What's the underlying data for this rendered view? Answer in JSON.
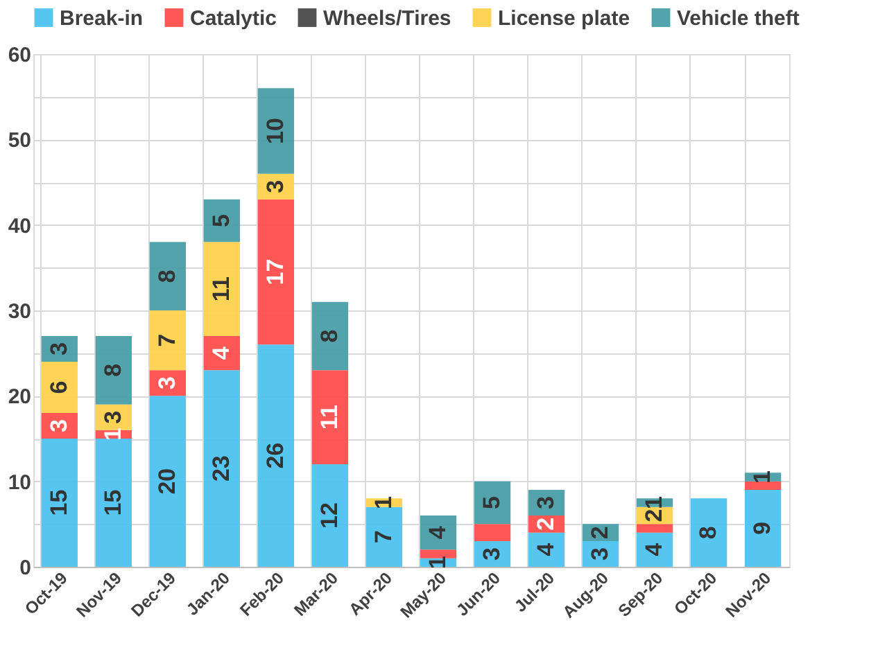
{
  "chart_data": {
    "type": "bar",
    "stacked": true,
    "categories": [
      "Oct-19",
      "Nov-19",
      "Dec-19",
      "Jan-20",
      "Feb-20",
      "Mar-20",
      "Apr-20",
      "May-20",
      "Jun-20",
      "Jul-20",
      "Aug-20",
      "Sep-20",
      "Oct-20",
      "Nov-20"
    ],
    "series": [
      {
        "name": "Break-in",
        "color": "#4dc3f0",
        "values": [
          15,
          15,
          20,
          23,
          26,
          12,
          7,
          1,
          3,
          4,
          3,
          4,
          8,
          9
        ],
        "value_labels": [
          "15",
          "15",
          "20",
          "23",
          "26",
          "12",
          "7",
          "1",
          "3",
          "4",
          "3",
          "4",
          "8",
          "9"
        ]
      },
      {
        "name": "Catalytic",
        "color": "#ff4d4d",
        "values": [
          3,
          1,
          3,
          4,
          17,
          11,
          null,
          1,
          2,
          2,
          null,
          1,
          null,
          1
        ],
        "value_labels": [
          "3",
          "1",
          "3",
          "4",
          "17",
          "11",
          null,
          null,
          null,
          "2",
          null,
          null,
          null,
          null
        ]
      },
      {
        "name": "Wheels/Tires",
        "color": "#4a4a4a",
        "values": [
          null,
          null,
          null,
          null,
          null,
          null,
          null,
          null,
          null,
          null,
          null,
          null,
          null,
          null
        ]
      },
      {
        "name": "License plate",
        "color": "#ffd24d",
        "values": [
          6,
          3,
          7,
          11,
          3,
          null,
          1,
          null,
          null,
          null,
          null,
          2,
          null,
          null
        ],
        "value_labels": [
          "6",
          "3",
          "7",
          "11",
          "3",
          null,
          "1",
          null,
          null,
          null,
          null,
          "2",
          null,
          null
        ]
      },
      {
        "name": "Vehicle theft",
        "color": "#4a9ea8",
        "values": [
          3,
          8,
          8,
          5,
          10,
          8,
          null,
          4,
          5,
          3,
          2,
          1,
          null,
          1
        ],
        "value_labels": [
          "3",
          "8",
          "8",
          "5",
          "10",
          "8",
          null,
          "4",
          "5",
          "3",
          "2",
          "1",
          null,
          "1"
        ]
      }
    ],
    "ylim": [
      0,
      60
    ],
    "yticks": [
      0,
      {
        "value": 5,
        "label": null
      },
      10,
      {
        "value": 15,
        "label": null
      },
      20,
      {
        "value": 25,
        "label": null
      },
      30,
      {
        "value": 35,
        "label": null
      },
      40,
      {
        "value": 45,
        "label": null
      },
      50,
      {
        "value": 55,
        "label": null
      },
      60
    ],
    "grid": true,
    "legend": "top"
  }
}
